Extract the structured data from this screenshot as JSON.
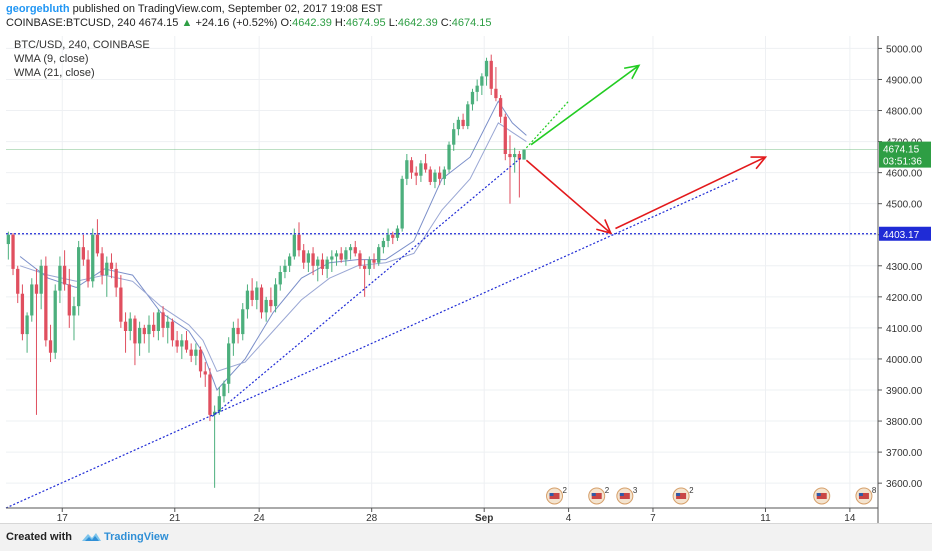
{
  "header": {
    "author": "georgebluth",
    "published_text": "published on TradingView.com, September 02, 2017 19:08 EST",
    "symbol_line": "COINBASE:BTCUSD, 240",
    "last": "4674.15",
    "up_arrow": "▲",
    "change": "+24.16 (+0.52%)",
    "o_label": "O:",
    "o": "4642.39",
    "h_label": "H:",
    "h": "4674.95",
    "l_label": "L:",
    "l": "4642.39",
    "c_label": "C:",
    "c": "4674.15"
  },
  "legend": {
    "symbol": "BTC/USD, 240, COINBASE",
    "wma9": "WMA (9, close)",
    "wma21": "WMA (21, close)"
  },
  "footer": {
    "created": "Created with",
    "brand": "TradingView",
    "logo_icon": "tradingview-cloud-icon"
  },
  "colors": {
    "up": "#4caf7d",
    "down": "#e04f5f",
    "wma9": "#7b8fc9",
    "wma21": "#9aa7d4",
    "support": "#1f2bd6",
    "arrow_red": "#e3191c",
    "arrow_green": "#22cc22",
    "price_label_bg": "#2e9e44",
    "support_label_bg": "#1f2bd6"
  },
  "chart_data": {
    "type": "candlestick",
    "x_axis": {
      "type": "date",
      "range": [
        "2017-08-15",
        "2017-09-15"
      ],
      "tick_labels": [
        {
          "date": "2017-08-17",
          "label": "17"
        },
        {
          "date": "2017-08-21",
          "label": "21"
        },
        {
          "date": "2017-08-24",
          "label": "24"
        },
        {
          "date": "2017-08-28",
          "label": "28"
        },
        {
          "date": "2017-09-01",
          "label": "Sep"
        },
        {
          "date": "2017-09-04",
          "label": "4"
        },
        {
          "date": "2017-09-07",
          "label": "7"
        },
        {
          "date": "2017-09-11",
          "label": "11"
        },
        {
          "date": "2017-09-14",
          "label": "14"
        }
      ]
    },
    "y_axis": {
      "side": "right",
      "range": [
        3520,
        5040
      ],
      "ticks": [
        "5000.00",
        "4900.00",
        "4800.00",
        "4700.00",
        "4600.00",
        "4500.00",
        "4400.00",
        "4300.00",
        "4200.00",
        "4100.00",
        "4000.00",
        "3900.00",
        "3800.00",
        "3700.00",
        "3600.00"
      ],
      "tick_values": [
        5000,
        4900,
        4800,
        4700,
        4600,
        4500,
        4400,
        4300,
        4200,
        4100,
        4000,
        3900,
        3800,
        3700,
        3600
      ]
    },
    "grid": true,
    "price_label": {
      "value": 4674.15,
      "text": "4674.15",
      "countdown": "03:51:36"
    },
    "support_label": {
      "value": 4403.17,
      "text": "4403.17"
    },
    "series": [
      {
        "name": "BTC/USD, 240, COINBASE",
        "kind": "ohlc",
        "start": "2017-08-15T00:00",
        "interval_hours": 4,
        "ohlc": [
          [
            4370,
            4410,
            4320,
            4400
          ],
          [
            4400,
            4405,
            4270,
            4290
          ],
          [
            4290,
            4300,
            4180,
            4210
          ],
          [
            4210,
            4240,
            4060,
            4080
          ],
          [
            4080,
            4150,
            4020,
            4140
          ],
          [
            4140,
            4260,
            4120,
            4240
          ],
          [
            4240,
            4290,
            3820,
            4210
          ],
          [
            4210,
            4320,
            4160,
            4300
          ],
          [
            4300,
            4330,
            4040,
            4060
          ],
          [
            4060,
            4110,
            3990,
            4020
          ],
          [
            4020,
            4240,
            4000,
            4220
          ],
          [
            4220,
            4330,
            4180,
            4300
          ],
          [
            4300,
            4350,
            4220,
            4240
          ],
          [
            4240,
            4290,
            4100,
            4140
          ],
          [
            4140,
            4200,
            4060,
            4170
          ],
          [
            4170,
            4380,
            4140,
            4360
          ],
          [
            4360,
            4400,
            4300,
            4320
          ],
          [
            4320,
            4350,
            4230,
            4250
          ],
          [
            4250,
            4420,
            4230,
            4400
          ],
          [
            4400,
            4450,
            4330,
            4340
          ],
          [
            4340,
            4360,
            4240,
            4270
          ],
          [
            4270,
            4330,
            4200,
            4310
          ],
          [
            4310,
            4340,
            4260,
            4290
          ],
          [
            4290,
            4310,
            4200,
            4230
          ],
          [
            4230,
            4270,
            4100,
            4120
          ],
          [
            4120,
            4150,
            4020,
            4090
          ],
          [
            4090,
            4150,
            4060,
            4130
          ],
          [
            4130,
            4140,
            3980,
            4050
          ],
          [
            4050,
            4120,
            4010,
            4100
          ],
          [
            4100,
            4110,
            4050,
            4080
          ],
          [
            4080,
            4140,
            4020,
            4110
          ],
          [
            4110,
            4150,
            4070,
            4090
          ],
          [
            4090,
            4160,
            4060,
            4150
          ],
          [
            4150,
            4170,
            4070,
            4100
          ],
          [
            4100,
            4140,
            4050,
            4120
          ],
          [
            4120,
            4130,
            4040,
            4060
          ],
          [
            4060,
            4090,
            4020,
            4040
          ],
          [
            4040,
            4080,
            4000,
            4060
          ],
          [
            4060,
            4090,
            4020,
            4030
          ],
          [
            4030,
            4050,
            3990,
            4010
          ],
          [
            4010,
            4050,
            3980,
            4030
          ],
          [
            4030,
            4040,
            3940,
            3960
          ],
          [
            3960,
            3990,
            3910,
            3950
          ],
          [
            3950,
            3970,
            3800,
            3820
          ],
          [
            3820,
            3850,
            3585,
            3830
          ],
          [
            3830,
            3910,
            3820,
            3880
          ],
          [
            3880,
            3930,
            3860,
            3920
          ],
          [
            3920,
            4070,
            3890,
            4050
          ],
          [
            4050,
            4120,
            4010,
            4100
          ],
          [
            4100,
            4130,
            4050,
            4080
          ],
          [
            4080,
            4180,
            4060,
            4160
          ],
          [
            4160,
            4240,
            4130,
            4220
          ],
          [
            4220,
            4260,
            4170,
            4190
          ],
          [
            4190,
            4250,
            4160,
            4230
          ],
          [
            4230,
            4240,
            4130,
            4150
          ],
          [
            4150,
            4200,
            4120,
            4190
          ],
          [
            4190,
            4230,
            4150,
            4170
          ],
          [
            4170,
            4260,
            4150,
            4240
          ],
          [
            4240,
            4300,
            4220,
            4280
          ],
          [
            4280,
            4320,
            4260,
            4300
          ],
          [
            4300,
            4340,
            4280,
            4330
          ],
          [
            4330,
            4420,
            4320,
            4400
          ],
          [
            4400,
            4440,
            4330,
            4350
          ],
          [
            4350,
            4370,
            4290,
            4310
          ],
          [
            4310,
            4350,
            4280,
            4340
          ],
          [
            4340,
            4360,
            4270,
            4300
          ],
          [
            4300,
            4330,
            4250,
            4320
          ],
          [
            4320,
            4340,
            4270,
            4290
          ],
          [
            4290,
            4330,
            4260,
            4320
          ],
          [
            4320,
            4350,
            4280,
            4330
          ],
          [
            4330,
            4350,
            4300,
            4340
          ],
          [
            4340,
            4360,
            4310,
            4320
          ],
          [
            4320,
            4360,
            4300,
            4350
          ],
          [
            4350,
            4370,
            4320,
            4360
          ],
          [
            4360,
            4380,
            4330,
            4340
          ],
          [
            4340,
            4350,
            4290,
            4300
          ],
          [
            4300,
            4320,
            4200,
            4290
          ],
          [
            4290,
            4330,
            4270,
            4320
          ],
          [
            4320,
            4340,
            4290,
            4310
          ],
          [
            4310,
            4370,
            4300,
            4360
          ],
          [
            4360,
            4390,
            4340,
            4380
          ],
          [
            4380,
            4420,
            4360,
            4400
          ],
          [
            4400,
            4410,
            4370,
            4390
          ],
          [
            4390,
            4430,
            4380,
            4420
          ],
          [
            4420,
            4590,
            4410,
            4580
          ],
          [
            4580,
            4660,
            4560,
            4640
          ],
          [
            4640,
            4650,
            4580,
            4600
          ],
          [
            4600,
            4620,
            4560,
            4590
          ],
          [
            4590,
            4640,
            4570,
            4630
          ],
          [
            4630,
            4660,
            4600,
            4610
          ],
          [
            4610,
            4620,
            4560,
            4570
          ],
          [
            4570,
            4610,
            4550,
            4600
          ],
          [
            4600,
            4620,
            4560,
            4580
          ],
          [
            4580,
            4620,
            4560,
            4610
          ],
          [
            4610,
            4700,
            4600,
            4690
          ],
          [
            4690,
            4760,
            4670,
            4740
          ],
          [
            4740,
            4780,
            4720,
            4770
          ],
          [
            4770,
            4790,
            4740,
            4750
          ],
          [
            4750,
            4830,
            4740,
            4820
          ],
          [
            4820,
            4870,
            4800,
            4860
          ],
          [
            4860,
            4900,
            4830,
            4880
          ],
          [
            4880,
            4920,
            4850,
            4910
          ],
          [
            4910,
            4970,
            4880,
            4960
          ],
          [
            4960,
            4980,
            4850,
            4870
          ],
          [
            4870,
            4940,
            4830,
            4840
          ],
          [
            4840,
            4850,
            4760,
            4780
          ],
          [
            4780,
            4790,
            4640,
            4660
          ],
          [
            4660,
            4720,
            4500,
            4650
          ],
          [
            4650,
            4680,
            4600,
            4660
          ],
          [
            4660,
            4670,
            4520,
            4642
          ],
          [
            4642,
            4675,
            4642,
            4674
          ]
        ]
      },
      {
        "name": "WMA (9, close)",
        "kind": "line",
        "points": [
          [
            "2017-08-15T12:00",
            4330
          ],
          [
            "2017-08-16T12:00",
            4260
          ],
          [
            "2017-08-17T12:00",
            4230
          ],
          [
            "2017-08-18T12:00",
            4290
          ],
          [
            "2017-08-19T12:00",
            4270
          ],
          [
            "2017-08-20T12:00",
            4150
          ],
          [
            "2017-08-21T12:00",
            4090
          ],
          [
            "2017-08-22T00:00",
            4020
          ],
          [
            "2017-08-22T12:00",
            3900
          ],
          [
            "2017-08-23T12:00",
            4000
          ],
          [
            "2017-08-24T12:00",
            4150
          ],
          [
            "2017-08-25T12:00",
            4260
          ],
          [
            "2017-08-26T12:00",
            4310
          ],
          [
            "2017-08-27T12:00",
            4320
          ],
          [
            "2017-08-28T12:00",
            4320
          ],
          [
            "2017-08-29T12:00",
            4380
          ],
          [
            "2017-08-30T12:00",
            4580
          ],
          [
            "2017-08-31T12:00",
            4650
          ],
          [
            "2017-09-01T12:00",
            4830
          ],
          [
            "2017-09-02T00:00",
            4760
          ],
          [
            "2017-09-02T12:00",
            4720
          ]
        ]
      },
      {
        "name": "WMA (21, close)",
        "kind": "line",
        "points": [
          [
            "2017-08-15T12:00",
            4300
          ],
          [
            "2017-08-16T12:00",
            4270
          ],
          [
            "2017-08-17T12:00",
            4250
          ],
          [
            "2017-08-18T12:00",
            4270
          ],
          [
            "2017-08-19T12:00",
            4250
          ],
          [
            "2017-08-20T12:00",
            4170
          ],
          [
            "2017-08-21T12:00",
            4110
          ],
          [
            "2017-08-22T00:00",
            4060
          ],
          [
            "2017-08-22T12:00",
            3960
          ],
          [
            "2017-08-23T12:00",
            3990
          ],
          [
            "2017-08-24T12:00",
            4090
          ],
          [
            "2017-08-25T12:00",
            4190
          ],
          [
            "2017-08-26T12:00",
            4260
          ],
          [
            "2017-08-27T12:00",
            4300
          ],
          [
            "2017-08-28T12:00",
            4310
          ],
          [
            "2017-08-29T12:00",
            4340
          ],
          [
            "2017-08-30T12:00",
            4480
          ],
          [
            "2017-08-31T12:00",
            4580
          ],
          [
            "2017-09-01T12:00",
            4760
          ],
          [
            "2017-09-02T00:00",
            4730
          ],
          [
            "2017-09-02T12:00",
            4700
          ]
        ]
      }
    ],
    "annotations": [
      {
        "kind": "hline",
        "value": 4403.17,
        "style": "dotted",
        "color": "#1f2bd6"
      },
      {
        "kind": "trendline",
        "style": "dotted",
        "color": "#1f2bd6",
        "from": [
          "2017-08-22T08:00",
          3815
        ],
        "to": [
          "2017-09-02T08:00",
          4650
        ]
      },
      {
        "kind": "trendline",
        "style": "dotted",
        "color": "#1f2bd6",
        "from": [
          "2017-08-15T00:00",
          3520
        ],
        "to": [
          "2017-09-10T00:00",
          4580
        ]
      },
      {
        "kind": "trendline",
        "style": "dotted",
        "color": "#22cc22",
        "from": [
          "2017-09-02T12:00",
          4680
        ],
        "to": [
          "2017-09-04T00:00",
          4830
        ]
      },
      {
        "kind": "arrow",
        "color": "#22cc22",
        "from": [
          "2017-09-02T16:00",
          4690
        ],
        "to": [
          "2017-09-06T12:00",
          4945
        ]
      },
      {
        "kind": "arrow",
        "color": "#e3191c",
        "from": [
          "2017-09-02T12:00",
          4640
        ],
        "to": [
          "2017-09-05T12:00",
          4405
        ]
      },
      {
        "kind": "arrow",
        "color": "#e3191c",
        "from": [
          "2017-09-05T16:00",
          4420
        ],
        "to": [
          "2017-09-11T00:00",
          4650
        ]
      }
    ],
    "event_badges": [
      {
        "date": "2017-09-03T12:00",
        "count": "2"
      },
      {
        "date": "2017-09-05T00:00",
        "count": "2"
      },
      {
        "date": "2017-09-06T00:00",
        "count": "3"
      },
      {
        "date": "2017-09-08T00:00",
        "count": "2"
      },
      {
        "date": "2017-09-13T00:00",
        "count": ""
      },
      {
        "date": "2017-09-14T12:00",
        "count": "8"
      }
    ]
  }
}
